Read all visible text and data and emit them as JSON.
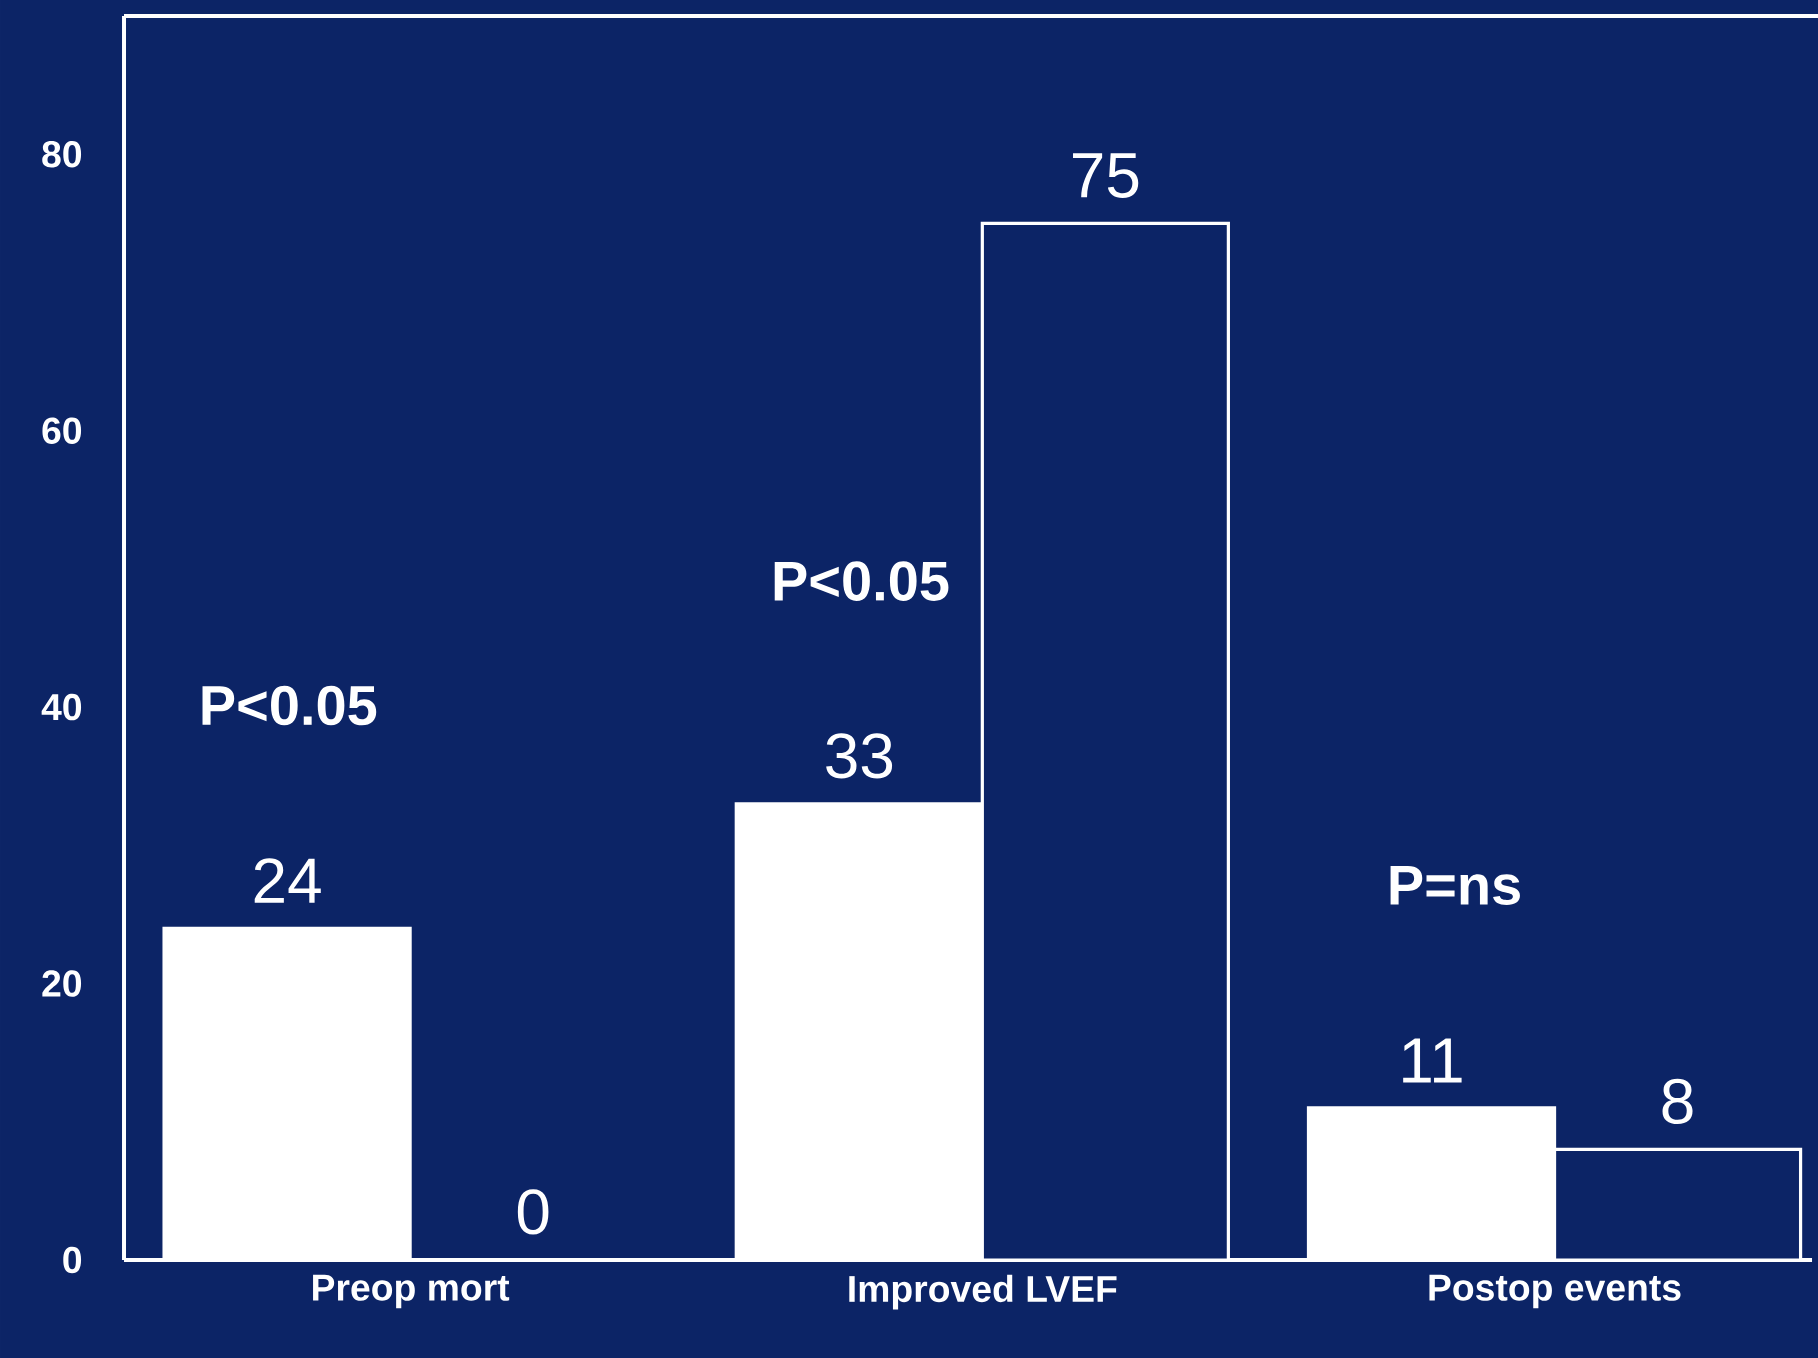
{
  "chart_data": {
    "type": "bar",
    "categories": [
      "Preop mort",
      "Improved LVEF",
      "Postop events"
    ],
    "series": [
      {
        "color": "#ffffff",
        "values": [
          24,
          33,
          11
        ]
      },
      {
        "color": "#ffffff",
        "values": [
          0,
          75,
          8
        ]
      }
    ],
    "ylim": [
      0,
      90
    ],
    "yticks": [
      0,
      20,
      40,
      60,
      80
    ],
    "data_labels": true,
    "grid": false,
    "annotations": [
      "P<0.05",
      "P<0.05",
      "P=ns"
    ]
  }
}
